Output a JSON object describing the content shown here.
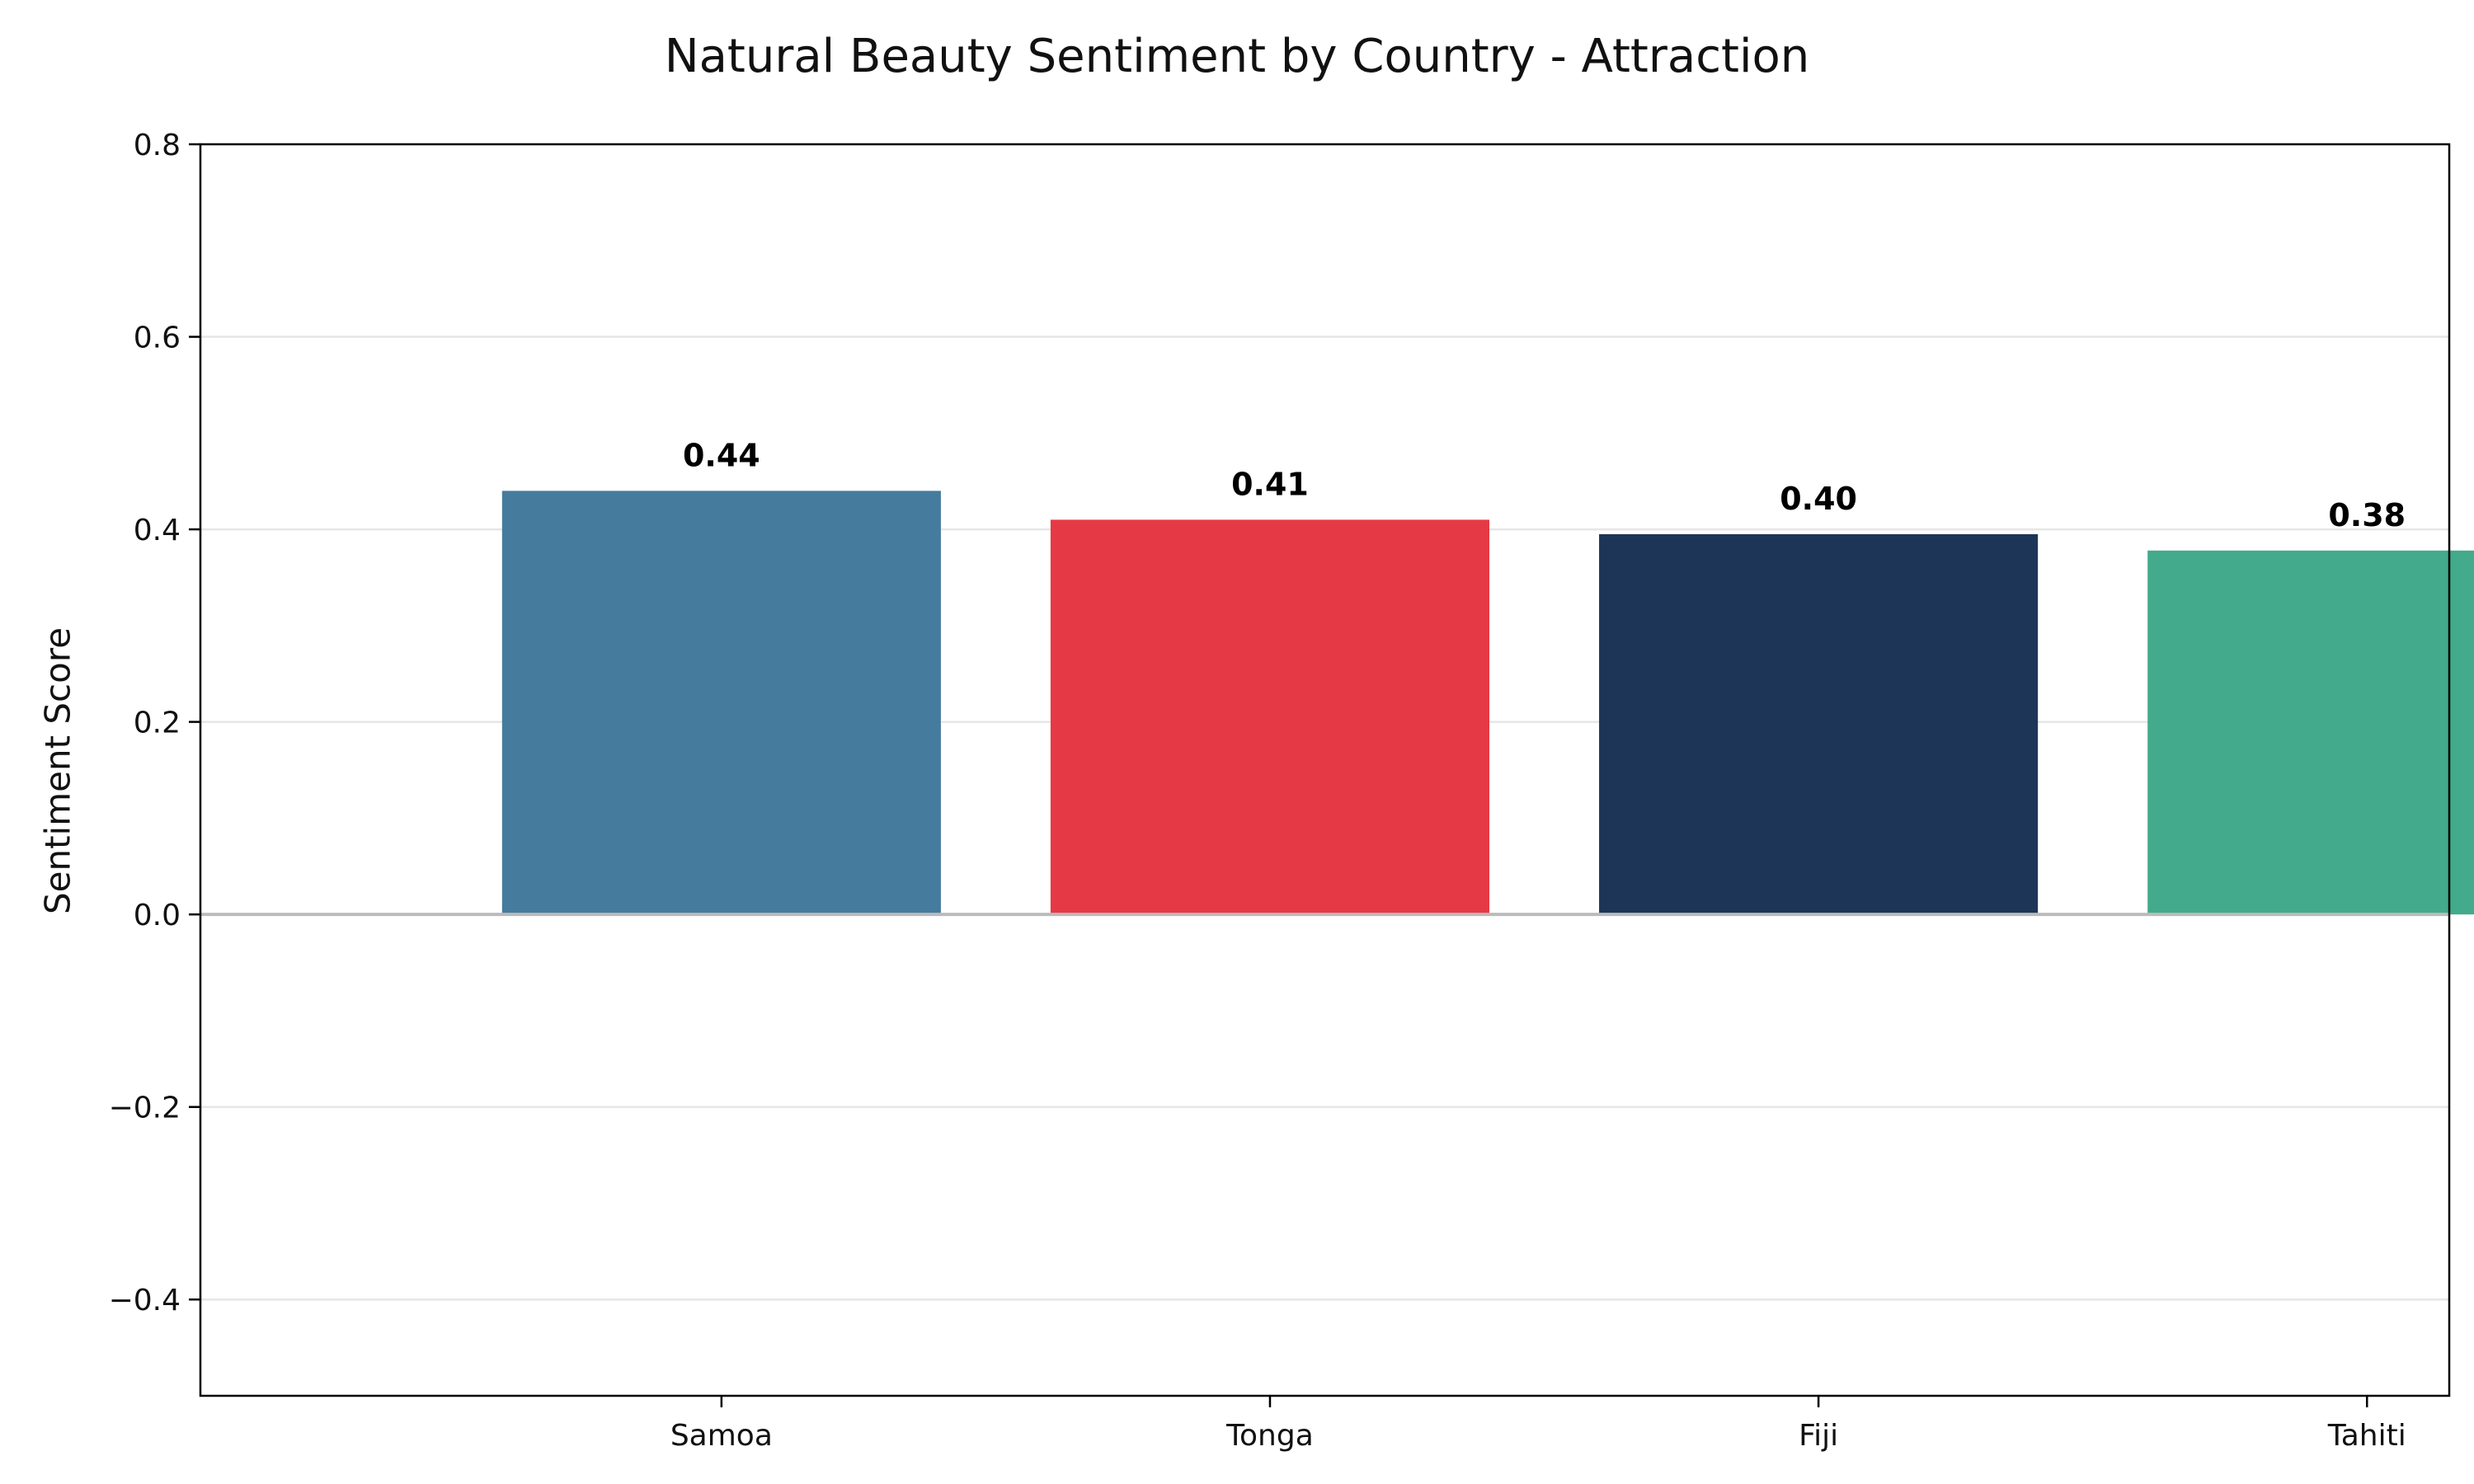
{
  "chart_data": {
    "type": "bar",
    "title": "Natural Beauty Sentiment by Country - Attraction",
    "xlabel": "",
    "ylabel": "Sentiment Score",
    "categories": [
      "Samoa",
      "Tonga",
      "Fiji",
      "Tahiti"
    ],
    "values": [
      0.44,
      0.41,
      0.395,
      0.378
    ],
    "value_labels": [
      "0.44",
      "0.41",
      "0.40",
      "0.38"
    ],
    "colors": [
      "#457b9d",
      "#e63946",
      "#1d3557",
      "#43aa8b"
    ],
    "ylim": [
      -0.5,
      0.8
    ],
    "yticks": [
      -0.4,
      -0.2,
      0.0,
      0.2,
      0.4,
      0.6,
      0.8
    ],
    "ytick_labels": [
      "−0.4",
      "−0.2",
      "0.0",
      "0.2",
      "0.4",
      "0.6",
      "0.8"
    ],
    "grid": "horizontal",
    "zero_line": true,
    "legend": "none"
  }
}
